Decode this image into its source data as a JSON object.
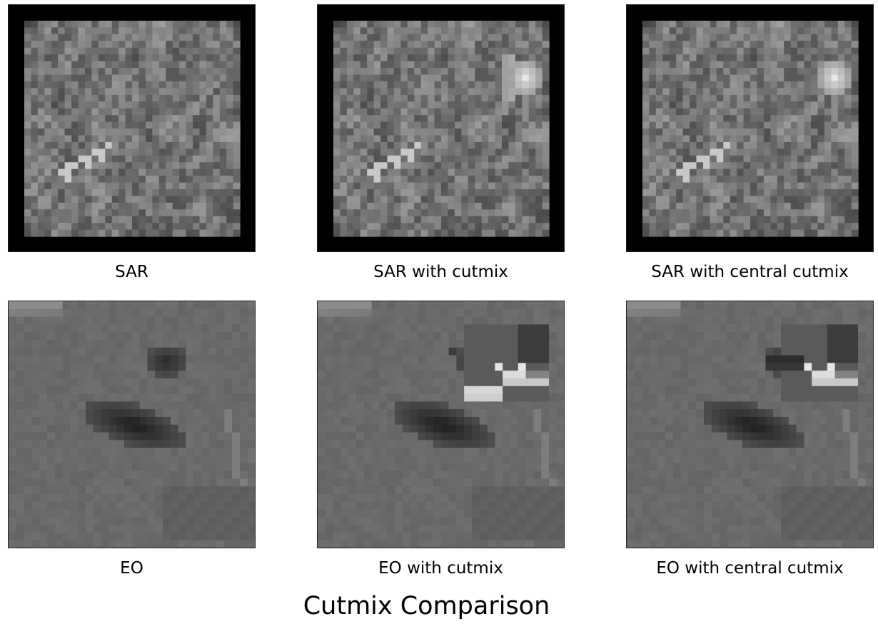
{
  "figure": {
    "title": "Cutmix Comparison",
    "panels": [
      {
        "id": "sar",
        "label": "SAR",
        "kind": "sar",
        "patch": "none"
      },
      {
        "id": "sar-cutmix",
        "label": "SAR with cutmix",
        "kind": "sar",
        "patch": "cutmix"
      },
      {
        "id": "sar-central-cutmix",
        "label": "SAR with central cutmix",
        "kind": "sar",
        "patch": "central"
      },
      {
        "id": "eo",
        "label": "EO",
        "kind": "eo",
        "patch": "none"
      },
      {
        "id": "eo-cutmix",
        "label": "EO with cutmix",
        "kind": "eo",
        "patch": "cutmix"
      },
      {
        "id": "eo-central-cutmix",
        "label": "EO with central cutmix",
        "kind": "eo",
        "patch": "central"
      }
    ]
  },
  "colors": {
    "background": "#ffffff",
    "sar_frame": "#000000",
    "eo_background": "#6b6b6b",
    "eo_dark_object": "#1a1a1a"
  }
}
